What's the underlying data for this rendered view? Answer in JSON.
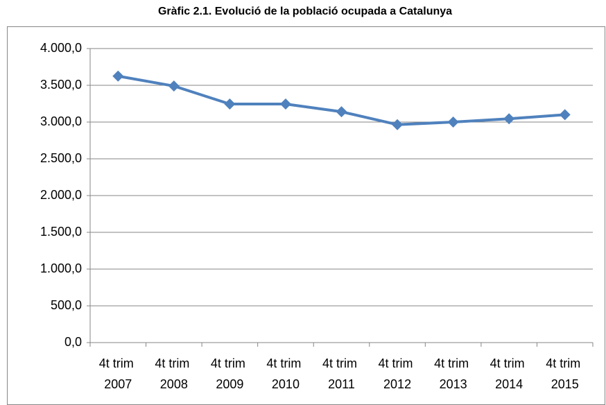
{
  "chart_data": {
    "type": "line",
    "title": "Gràfic 2.1. Evolució de la població ocupada a Catalunya",
    "categories": [
      "4t trim 2007",
      "4t trim 2008",
      "4t trim 2009",
      "4t trim 2010",
      "4t trim 2011",
      "4t trim 2012",
      "4t trim 2013",
      "4t trim 2014",
      "4t trim 2015"
    ],
    "values": [
      3625,
      3490,
      3245,
      3245,
      3140,
      2965,
      3000,
      3045,
      3100
    ],
    "color": "#4f81bd",
    "ylim": [
      0,
      4000
    ],
    "yticks": [
      {
        "value": 0,
        "label": "0,0"
      },
      {
        "value": 500,
        "label": "500,0"
      },
      {
        "value": 1000,
        "label": "1.000,0"
      },
      {
        "value": 1500,
        "label": "1.500,0"
      },
      {
        "value": 2000,
        "label": "2.000,0"
      },
      {
        "value": 2500,
        "label": "2.500,0"
      },
      {
        "value": 3000,
        "label": "3.000,0"
      },
      {
        "value": 3500,
        "label": "3.500,0"
      },
      {
        "value": 4000,
        "label": "4.000,0"
      }
    ],
    "grid": true
  }
}
